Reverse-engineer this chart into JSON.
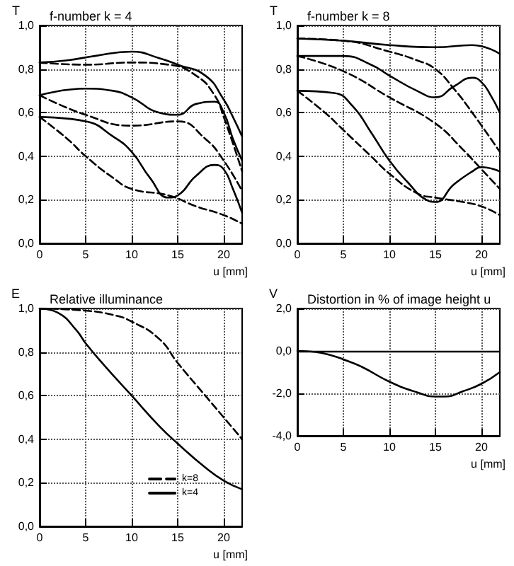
{
  "chart_data": [
    {
      "type": "line",
      "title": "f-number k = 4",
      "xlabel": "u [mm]",
      "ylabel": "T",
      "xlim": [
        0,
        22
      ],
      "xticks": [
        0,
        5,
        10,
        15,
        20
      ],
      "ylim": [
        0,
        1
      ],
      "yticks": [
        {
          "value": 0,
          "label": "0,0"
        },
        {
          "value": 0.2,
          "label": "0,2"
        },
        {
          "value": 0.4,
          "label": "0,4"
        },
        {
          "value": 0.6,
          "label": "0,6"
        },
        {
          "value": 0.8,
          "label": "0,8"
        },
        {
          "value": 1,
          "label": "1,0"
        }
      ],
      "grid": true,
      "marker": "none",
      "series": [
        {
          "color": "#000000",
          "line_style": "solid",
          "x": [
            0,
            3,
            6,
            10,
            13,
            15,
            18,
            20,
            21,
            22
          ],
          "values": [
            0.83,
            0.84,
            0.86,
            0.88,
            0.85,
            0.82,
            0.77,
            0.66,
            0.58,
            0.49
          ]
        },
        {
          "color": "#000000",
          "line_style": "dashed",
          "x": [
            0,
            5,
            10,
            14,
            17,
            19,
            20,
            22
          ],
          "values": [
            0.83,
            0.82,
            0.83,
            0.82,
            0.77,
            0.68,
            0.58,
            0.33
          ]
        },
        {
          "color": "#000000",
          "line_style": "solid",
          "x": [
            0,
            5,
            8,
            10,
            13,
            15,
            17,
            19,
            20,
            21,
            22
          ],
          "values": [
            0.68,
            0.71,
            0.7,
            0.67,
            0.6,
            0.59,
            0.64,
            0.65,
            0.6,
            0.48,
            0.38
          ]
        },
        {
          "color": "#000000",
          "line_style": "dashed",
          "x": [
            0,
            5,
            10,
            15,
            18,
            20,
            22
          ],
          "values": [
            0.68,
            0.59,
            0.54,
            0.56,
            0.48,
            0.38,
            0.24
          ]
        },
        {
          "color": "#000000",
          "line_style": "solid",
          "x": [
            0,
            5,
            8,
            10,
            12,
            14,
            15,
            17,
            19,
            20,
            21,
            22
          ],
          "values": [
            0.58,
            0.56,
            0.49,
            0.42,
            0.3,
            0.21,
            0.22,
            0.31,
            0.36,
            0.34,
            0.25,
            0.14
          ]
        },
        {
          "color": "#000000",
          "line_style": "dashed",
          "x": [
            0,
            3,
            5,
            8,
            10,
            14,
            17,
            20,
            22
          ],
          "values": [
            0.58,
            0.48,
            0.4,
            0.3,
            0.25,
            0.22,
            0.17,
            0.13,
            0.09
          ]
        }
      ]
    },
    {
      "type": "line",
      "title": "f-number k = 8",
      "xlabel": "u [mm]",
      "ylabel": "T",
      "xlim": [
        0,
        22
      ],
      "xticks": [
        0,
        5,
        10,
        15,
        20
      ],
      "ylim": [
        0,
        1
      ],
      "yticks": [
        {
          "value": 0,
          "label": "0,0"
        },
        {
          "value": 0.2,
          "label": "0,2"
        },
        {
          "value": 0.4,
          "label": "0,4"
        },
        {
          "value": 0.6,
          "label": "0,6"
        },
        {
          "value": 0.8,
          "label": "0,8"
        },
        {
          "value": 1,
          "label": "1,0"
        }
      ],
      "grid": true,
      "marker": "none",
      "series": [
        {
          "color": "#000000",
          "line_style": "solid",
          "x": [
            0,
            5,
            10,
            15,
            19,
            22
          ],
          "values": [
            0.94,
            0.93,
            0.91,
            0.9,
            0.91,
            0.87
          ]
        },
        {
          "color": "#000000",
          "line_style": "dashed",
          "x": [
            0,
            5,
            10,
            13,
            15,
            17,
            19,
            22
          ],
          "values": [
            0.94,
            0.93,
            0.88,
            0.84,
            0.8,
            0.71,
            0.6,
            0.42
          ]
        },
        {
          "color": "#000000",
          "line_style": "solid",
          "x": [
            0,
            5,
            8,
            10,
            13,
            15,
            17,
            19,
            20,
            21,
            22
          ],
          "values": [
            0.86,
            0.86,
            0.82,
            0.77,
            0.7,
            0.67,
            0.72,
            0.76,
            0.74,
            0.68,
            0.6
          ]
        },
        {
          "color": "#000000",
          "line_style": "dashed",
          "x": [
            0,
            5,
            10,
            15,
            18,
            20,
            22
          ],
          "values": [
            0.86,
            0.79,
            0.67,
            0.55,
            0.43,
            0.34,
            0.25
          ]
        },
        {
          "color": "#000000",
          "line_style": "solid",
          "x": [
            0,
            4,
            6,
            8,
            10,
            12,
            14,
            15,
            17,
            19,
            20,
            22
          ],
          "values": [
            0.7,
            0.69,
            0.63,
            0.51,
            0.38,
            0.28,
            0.2,
            0.19,
            0.27,
            0.33,
            0.35,
            0.33
          ]
        },
        {
          "color": "#000000",
          "line_style": "dashed",
          "x": [
            0,
            3,
            5,
            8,
            10,
            13,
            15,
            18,
            20,
            22
          ],
          "values": [
            0.7,
            0.6,
            0.52,
            0.4,
            0.32,
            0.23,
            0.21,
            0.19,
            0.17,
            0.13
          ]
        }
      ]
    },
    {
      "type": "line",
      "title": "Relative illuminance",
      "xlabel": "u [mm]",
      "ylabel": "E",
      "xlim": [
        0,
        22
      ],
      "xticks": [
        0,
        5,
        10,
        15,
        20
      ],
      "ylim": [
        0,
        1
      ],
      "yticks": [
        {
          "value": 0,
          "label": "0,0"
        },
        {
          "value": 0.2,
          "label": "0,2"
        },
        {
          "value": 0.4,
          "label": "0,4"
        },
        {
          "value": 0.6,
          "label": "0,6"
        },
        {
          "value": 0.8,
          "label": "0,8"
        },
        {
          "value": 1,
          "label": "1,0"
        }
      ],
      "grid": true,
      "marker": "none",
      "legend": "bottom",
      "series": [
        {
          "name": "k=8",
          "color": "#000000",
          "line_style": "dashed",
          "x": [
            0,
            5,
            8,
            10,
            13,
            15,
            18,
            20,
            22
          ],
          "values": [
            1.0,
            0.99,
            0.97,
            0.94,
            0.86,
            0.75,
            0.6,
            0.5,
            0.4
          ]
        },
        {
          "name": "k=4",
          "color": "#000000",
          "line_style": "solid",
          "x": [
            0,
            2,
            4,
            5,
            7,
            10,
            13,
            15,
            18,
            20,
            22
          ],
          "values": [
            1.0,
            0.98,
            0.9,
            0.84,
            0.74,
            0.6,
            0.46,
            0.38,
            0.27,
            0.21,
            0.17
          ]
        }
      ]
    },
    {
      "type": "line",
      "title": "Distortion in % of image height u",
      "xlabel": "u [mm]",
      "ylabel": "V",
      "xlim": [
        0,
        22
      ],
      "xticks": [
        0,
        5,
        10,
        15,
        20
      ],
      "ylim": [
        -4,
        2
      ],
      "yticks": [
        {
          "value": -4,
          "label": "-4,0"
        },
        {
          "value": -2,
          "label": "-2,0"
        },
        {
          "value": 0,
          "label": "0,0"
        },
        {
          "value": 2,
          "label": "2,0"
        }
      ],
      "grid": true,
      "marker": "none",
      "ref_lines": [
        {
          "axis": "y",
          "value": 0,
          "color": "#000000",
          "line_style": "solid"
        }
      ],
      "series": [
        {
          "color": "#000000",
          "line_style": "solid",
          "x": [
            0,
            2,
            4,
            5,
            7,
            10,
            13,
            15,
            16,
            18,
            20,
            22
          ],
          "values": [
            0,
            -0.05,
            -0.25,
            -0.4,
            -0.75,
            -1.45,
            -1.95,
            -2.15,
            -2.15,
            -1.9,
            -1.55,
            -1.0
          ]
        }
      ]
    }
  ]
}
